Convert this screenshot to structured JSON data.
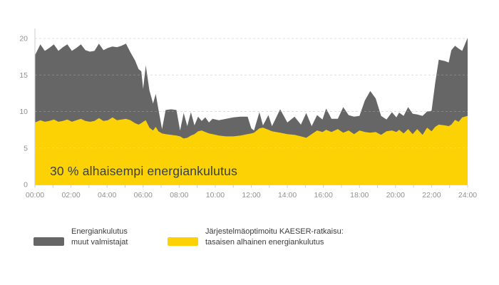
{
  "overlay": {
    "label": "30 % alhaisempi energiankulutus"
  },
  "legend": {
    "items": [
      {
        "label_line1": "Energiankulutus",
        "label_line2": "muut valmistajat",
        "color": "#666666"
      },
      {
        "label_line1": "Järjestelmäoptimoitu KAESER-ratkaisu:",
        "label_line2": "tasaisen alhainen energiankulutus",
        "color": "#fcd205"
      }
    ]
  },
  "colors": {
    "series_gray": "#666666",
    "series_yellow": "#fcd205",
    "overlay_text": "#33404d",
    "axis_text": "#909090",
    "grid_line": "#d6d6d6",
    "axis_line": "#cccccc",
    "background": "#ffffff"
  },
  "chart_data": {
    "type": "area",
    "title": "",
    "xlabel": "",
    "ylabel": "",
    "xlim": [
      0,
      24
    ],
    "ylim": [
      0,
      21.5
    ],
    "grid": "dashed-horizontal",
    "legend_position": "bottom",
    "y_ticks": [
      0,
      5,
      10,
      15,
      20
    ],
    "x_tick_hours": [
      0,
      2,
      4,
      6,
      8,
      10,
      12,
      14,
      16,
      18,
      20,
      22,
      24
    ],
    "x_tick_labels": [
      "00:00",
      "02:00",
      "04:00",
      "06:00",
      "08:00",
      "10:00",
      "12:00",
      "14:00",
      "16:00",
      "18:00",
      "20:00",
      "22:00",
      "24:00"
    ],
    "x": [
      0,
      0.3,
      0.55,
      0.8,
      1.05,
      1.3,
      1.55,
      1.8,
      2.05,
      2.3,
      2.55,
      2.8,
      3.05,
      3.3,
      3.55,
      3.8,
      4.05,
      4.3,
      4.55,
      4.8,
      5.05,
      5.3,
      5.55,
      5.75,
      5.9,
      6.0,
      6.15,
      6.35,
      6.55,
      6.7,
      6.85,
      7.05,
      7.25,
      7.55,
      7.85,
      8.05,
      8.25,
      8.45,
      8.65,
      8.85,
      9.05,
      9.25,
      9.45,
      9.65,
      9.85,
      10.2,
      10.6,
      11.0,
      11.4,
      11.8,
      12.0,
      12.15,
      12.45,
      12.65,
      12.95,
      13.15,
      13.6,
      14.0,
      14.4,
      14.75,
      15.05,
      15.35,
      15.65,
      15.95,
      16.15,
      16.45,
      16.8,
      17.1,
      17.4,
      17.7,
      18.0,
      18.3,
      18.6,
      18.9,
      19.2,
      19.5,
      19.8,
      20.05,
      20.2,
      20.45,
      20.7,
      20.95,
      21.2,
      21.5,
      21.75,
      22.0,
      22.2,
      22.4,
      22.75,
      22.95,
      23.1,
      23.3,
      23.5,
      23.7,
      24.0
    ],
    "series": [
      {
        "name": "Energiankulutus muut valmistajat",
        "color": "#666666",
        "values": [
          17.7,
          19.2,
          18.3,
          18.7,
          19.2,
          18.3,
          18.8,
          19.2,
          18.3,
          18.7,
          19.2,
          18.4,
          18.2,
          18.3,
          19.3,
          18.4,
          18.7,
          18.9,
          18.8,
          19.0,
          19.3,
          18.1,
          17.0,
          15.8,
          15.5,
          13.1,
          16.3,
          12.9,
          11.1,
          12.4,
          10.3,
          7.6,
          10.2,
          10.3,
          10.2,
          7.4,
          9.8,
          8.0,
          9.9,
          8.1,
          9.3,
          8.7,
          9.2,
          8.5,
          9.0,
          8.8,
          9.0,
          9.2,
          9.3,
          9.3,
          7.7,
          7.4,
          9.9,
          8.1,
          9.5,
          8.0,
          10.3,
          8.5,
          9.3,
          8.2,
          9.8,
          8.0,
          9.5,
          8.9,
          10.4,
          9.0,
          9.0,
          10.6,
          9.5,
          9.3,
          9.4,
          11.5,
          12.8,
          11.8,
          9.4,
          8.9,
          9.9,
          9.2,
          9.85,
          9.4,
          10.6,
          9.7,
          9.6,
          9.4,
          10.0,
          10.1,
          13.9,
          17.1,
          16.9,
          16.7,
          18.4,
          19.0,
          18.6,
          18.3,
          20.1
        ]
      },
      {
        "name": "Järjestelmäoptimoitu KAESER-ratkaisu: tasaisen alhainen energiankulutus",
        "color": "#fcd205",
        "values": [
          8.5,
          8.8,
          8.6,
          8.7,
          8.9,
          8.6,
          8.7,
          8.9,
          8.6,
          8.8,
          9.0,
          8.7,
          8.6,
          8.7,
          9.1,
          8.7,
          8.8,
          9.2,
          8.8,
          8.9,
          9.0,
          8.8,
          8.4,
          8.2,
          8.4,
          8.6,
          8.8,
          7.8,
          7.4,
          7.9,
          7.3,
          7.0,
          6.9,
          6.8,
          6.7,
          6.6,
          6.3,
          6.4,
          6.7,
          6.9,
          7.3,
          7.4,
          7.2,
          7.0,
          6.9,
          6.7,
          6.6,
          6.6,
          6.7,
          6.9,
          7.0,
          7.1,
          7.7,
          7.8,
          7.5,
          7.3,
          7.1,
          6.9,
          6.8,
          6.6,
          6.4,
          6.9,
          7.4,
          7.2,
          7.5,
          7.2,
          7.6,
          7.1,
          7.4,
          6.9,
          7.4,
          7.2,
          7.1,
          7.2,
          6.8,
          7.3,
          7.4,
          7.2,
          7.5,
          7.0,
          7.6,
          6.9,
          7.6,
          6.8,
          7.8,
          7.3,
          7.9,
          8.2,
          8.1,
          8.0,
          8.2,
          8.85,
          8.6,
          9.2,
          9.4
        ]
      }
    ],
    "annotation": "30 % alhaisempi energiankulutus"
  }
}
